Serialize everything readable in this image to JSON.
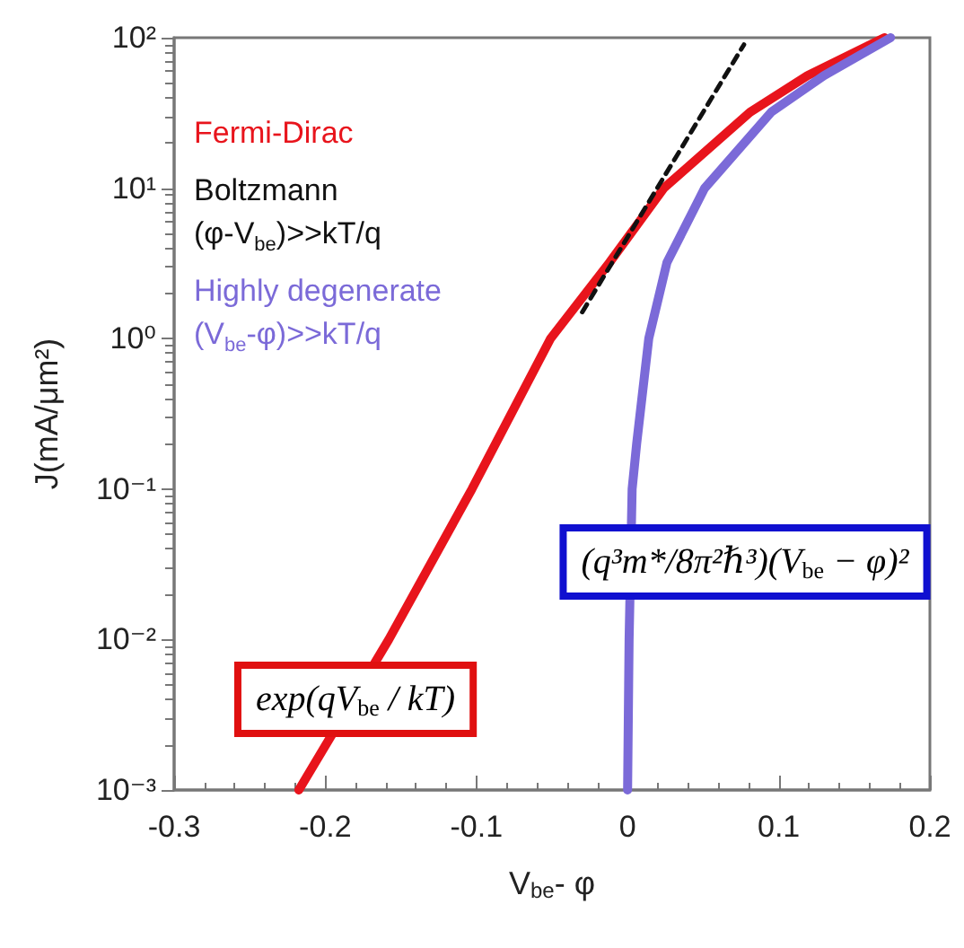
{
  "chart_data": {
    "type": "line",
    "xlabel": "V$_{be}$- φ",
    "ylabel": "J(mA/μm²)",
    "log": "y",
    "xlim": [
      -0.3,
      0.2
    ],
    "xticks": [
      -0.3,
      -0.2,
      -0.1,
      0,
      0.1,
      0.2
    ],
    "ylim": [
      0.001,
      100
    ],
    "yticks": [
      {
        "value": 0.001,
        "label": "10⁻³"
      },
      {
        "value": 0.01,
        "label": "10⁻²"
      },
      {
        "value": 0.1,
        "label": "10⁻¹"
      },
      {
        "value": 1,
        "label": "10⁰"
      },
      {
        "value": 10,
        "label": "10¹"
      },
      {
        "value": 100,
        "label": "10²"
      }
    ],
    "grid": false,
    "legend": false,
    "marker": "none",
    "series": [
      {
        "name": "Fermi-Dirac",
        "color": "#e8141c",
        "line_style": "solid",
        "x": [
          -0.2175,
          -0.158,
          -0.103,
          -0.051,
          -0.012,
          0.024,
          0.081,
          0.119,
          0.17
        ],
        "values": [
          0.001,
          0.01,
          0.1,
          1,
          3.2,
          10,
          32,
          56,
          100
        ]
      },
      {
        "name": "Boltzmann\n(φ-V$_{be}$)>>kT/q",
        "color": "#111111",
        "line_style": "dashed",
        "x": [
          -0.03,
          0.077
        ],
        "values": [
          1.5,
          90
        ]
      },
      {
        "name": "Highly degenerate\n(V$_{be}$-φ)>>kT/q",
        "color": "#7b6ad8",
        "line_style": "solid",
        "x": [
          0,
          0.001,
          0.003,
          0.006,
          0.014,
          0.026,
          0.051,
          0.095,
          0.13,
          0.174
        ],
        "values": [
          0.001,
          0.01,
          0.1,
          0.2,
          1,
          3.2,
          10,
          32,
          56,
          100
        ]
      }
    ],
    "annotations": [
      {
        "text": "exp(qV$_{be}$ / kT)",
        "x": -0.18,
        "y": 0.004
      },
      "(q³m*/8π²ℏ³)(V$_{be}$ − φ)²"
    ]
  }
}
